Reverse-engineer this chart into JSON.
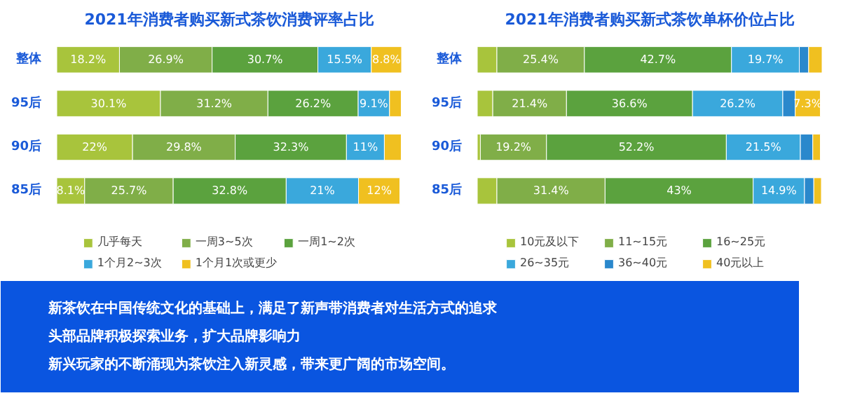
{
  "chart_data": [
    {
      "type": "bar",
      "orientation": "horizontal",
      "stacked": true,
      "title": "2021年消费者购买新式茶饮消费评率占比",
      "categories": [
        "整体",
        "95后",
        "90后",
        "85后"
      ],
      "legend": "bottom",
      "series": [
        {
          "name": "几乎每天",
          "color": "#a8c43c",
          "values": [
            18.2,
            30.1,
            22,
            8.1
          ],
          "value_labels": [
            "18.2%",
            "30.1%",
            "22%",
            "8.1%"
          ]
        },
        {
          "name": "一周3~5次",
          "color": "#80ae48",
          "values": [
            26.9,
            31.2,
            29.8,
            25.7
          ],
          "value_labels": [
            "26.9%",
            "31.2%",
            "29.8%",
            "25.7%"
          ]
        },
        {
          "name": "一周1~2次",
          "color": "#5ba23e",
          "values": [
            30.7,
            26.2,
            32.3,
            32.8
          ],
          "value_labels": [
            "30.7%",
            "26.2%",
            "32.3%",
            "32.8%"
          ]
        },
        {
          "name": "1个月2~3次",
          "color": "#3aa8dc",
          "values": [
            15.5,
            9.1,
            11,
            21
          ],
          "value_labels": [
            "15.5%",
            "9.1%",
            "11%",
            "21%"
          ]
        },
        {
          "name": "1个月1次或更少",
          "color": "#f0c020",
          "values": [
            8.8,
            3.4,
            4.9,
            12
          ],
          "value_labels": [
            "8.8%",
            null,
            null,
            "12%"
          ]
        }
      ]
    },
    {
      "type": "bar",
      "orientation": "horizontal",
      "stacked": true,
      "title": "2021年消费者购买新式茶饮单杯价位占比",
      "categories": [
        "整体",
        "95后",
        "90后",
        "85后"
      ],
      "legend": "bottom",
      "series": [
        {
          "name": "10元及以下",
          "color": "#a8c43c",
          "values": [
            5.7,
            4.5,
            0.9,
            5.7
          ],
          "value_labels": [
            null,
            null,
            null,
            null
          ]
        },
        {
          "name": "11~15元",
          "color": "#80ae48",
          "values": [
            25.4,
            21.4,
            19.2,
            31.4
          ],
          "value_labels": [
            "25.4%",
            "21.4%",
            "19.2%",
            "31.4%"
          ]
        },
        {
          "name": "16~25元",
          "color": "#5ba23e",
          "values": [
            42.7,
            36.6,
            52.2,
            43
          ],
          "value_labels": [
            "42.7%",
            "36.6%",
            "52.2%",
            "43%"
          ]
        },
        {
          "name": "26~35元",
          "color": "#3aa8dc",
          "values": [
            19.7,
            26.2,
            21.5,
            14.9
          ],
          "value_labels": [
            "19.7%",
            "26.2%",
            "21.5%",
            "14.9%"
          ]
        },
        {
          "name": "36~40元",
          "color": "#2a88cc",
          "values": [
            2.7,
            3.6,
            3.6,
            2.7
          ],
          "value_labels": [
            null,
            null,
            null,
            null
          ]
        },
        {
          "name": "40元以上",
          "color": "#f0c020",
          "values": [
            3.9,
            7.3,
            2.2,
            2.2
          ],
          "value_labels": [
            null,
            "7.3%",
            null,
            null
          ]
        }
      ]
    },
    {
      "type": "other",
      "annotations": [
        "新茶饮在中国传统文化的基础上，满足了新声带消费者对生活方式的追求",
        "头部品牌积极探索业务，扩大品牌影响力",
        "新兴玩家的不断涌现为茶饮注入新灵感，带来更广阔的市场空间。"
      ]
    }
  ]
}
